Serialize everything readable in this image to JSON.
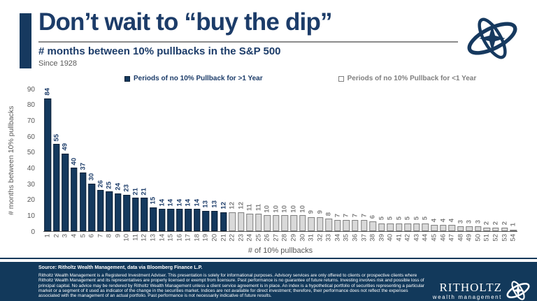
{
  "header": {
    "title": "Don’t wait to “buy the dip”",
    "subtitle": "# months between 10% pullbacks in the S&P 500",
    "since": "Since 1928"
  },
  "legend": {
    "items": [
      {
        "label": "Periods of no 10% Pullback for >1 Year",
        "swatch": "navy-filled-square"
      },
      {
        "label": "Periods of no 10% Pullback for <1 Year",
        "swatch": "white-outlined-square"
      }
    ]
  },
  "chart_data": {
    "type": "bar",
    "title": "Don’t wait to “buy the dip”",
    "subtitle": "# months between 10% pullbacks in the S&P 500, since 1928",
    "xlabel": "# of 10% pullbacks",
    "ylabel": "# months between 10% pullbacks",
    "ylim": [
      0,
      90
    ],
    "yticks": [
      0,
      10,
      20,
      30,
      40,
      50,
      60,
      70,
      80,
      90
    ],
    "grid": false,
    "legend_position": "top",
    "categories": [
      1,
      2,
      3,
      4,
      5,
      6,
      7,
      8,
      9,
      10,
      11,
      12,
      13,
      14,
      15,
      16,
      17,
      18,
      19,
      20,
      21,
      22,
      23,
      24,
      25,
      26,
      27,
      28,
      29,
      30,
      31,
      32,
      33,
      34,
      35,
      36,
      37,
      38,
      39,
      40,
      41,
      42,
      43,
      44,
      45,
      46,
      47,
      48,
      49,
      50,
      51,
      52,
      53,
      54
    ],
    "values": [
      84,
      55,
      49,
      40,
      37,
      30,
      26,
      25,
      24,
      23,
      21,
      21,
      15,
      14,
      14,
      14,
      14,
      14,
      13,
      13,
      12,
      12,
      12,
      11,
      11,
      10,
      10,
      10,
      10,
      10,
      9,
      9,
      8,
      7,
      7,
      7,
      7,
      6,
      5,
      5,
      5,
      5,
      5,
      5,
      4,
      4,
      4,
      3,
      3,
      3,
      2,
      2,
      2,
      1
    ],
    "dark_count": 21,
    "series": [
      {
        "name": "Periods of no 10% Pullback for >1 Year",
        "bars": "1-21"
      },
      {
        "name": "Periods of no 10% Pullback for <1 Year",
        "bars": "22-54"
      }
    ]
  },
  "colors": {
    "navy_bar": "#14395e",
    "navy_bar_border": "#0b1f35",
    "navy_label": "#1c3c69",
    "light_bar": "#d9d9d9",
    "light_bar_border": "#7f7f7f",
    "light_label": "#7f7f7f",
    "axis_gray": "#595959",
    "footer_bg": "#12395b"
  },
  "footer": {
    "source": "Source: Ritholtz Wealth Management, data via Bloomberg Finance L.P.",
    "disclaimer": "Ritholtz Wealth Management is a Registered Investment Adviser. This presentation is solely for informational purposes. Advisory services are only offered to clients or prospective clients where Ritholtz Wealth Management and its representatives are properly licensed or exempt from licensure. Past performance is no guarantee of future returns. Investing involves risk and possible loss of principal capital. No advice may be rendered by Ritholtz Wealth Management unless a client service agreement is in place. An index is a hypothetical portfolio of securities representing a particular market or a segment of it used as indicator of the change in the securities market. Indices are not available for direct investment; therefore, their performance does not reflect the expenses associated with the management of an actual portfolio. Past performance is not necessarily indicative of future results.",
    "brand_name": "RITHOLTZ",
    "brand_sub": "wealth management"
  }
}
